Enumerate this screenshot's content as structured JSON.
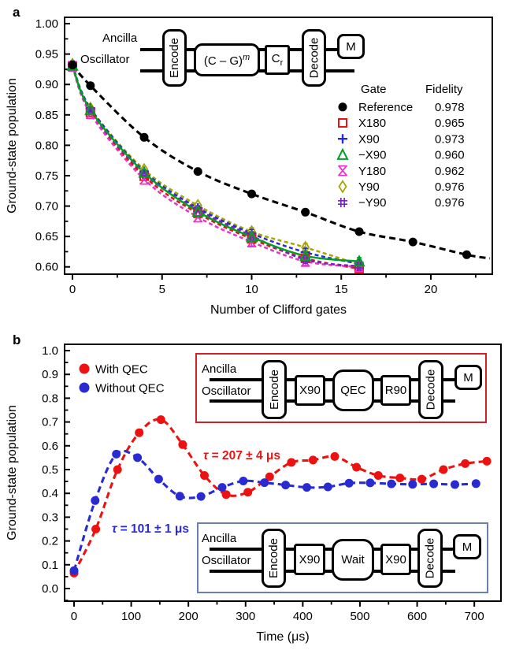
{
  "panel_a": {
    "label": "a",
    "circuit": {
      "ancilla": "Ancilla",
      "oscillator": "Oscillator",
      "encode": "Encode",
      "cg_base": "(C – G)",
      "cg_exp": "m",
      "cr_base": "C",
      "cr_sub": "r",
      "decode": "Decode",
      "m": "M"
    }
  },
  "panel_b": {
    "label": "b",
    "circuit_qec": {
      "ancilla": "Ancilla",
      "oscillator": "Oscillator",
      "encode": "Encode",
      "g1": "X90",
      "g2": "QEC",
      "g3": "R90",
      "decode": "Decode",
      "m": "M"
    },
    "circuit_wait": {
      "ancilla": "Ancilla",
      "oscillator": "Oscillator",
      "encode": "Encode",
      "g1": "X90",
      "g2": "Wait",
      "g3": "X90",
      "decode": "Decode",
      "m": "M"
    }
  },
  "chart_data": [
    {
      "id": "a",
      "type": "scatter",
      "xlabel": "Number of Clifford gates",
      "ylabel": "Ground-state population",
      "xlim": [
        -0.44,
        23.43
      ],
      "ylim": [
        0.588,
        1.0104
      ],
      "xticks": [
        0,
        5,
        10,
        15,
        20
      ],
      "xtick_labels": [
        "0",
        "5",
        "10",
        "15",
        "20"
      ],
      "yticks": [
        0.6,
        0.65,
        0.7,
        0.75,
        0.8,
        0.85,
        0.9,
        0.95,
        1.0
      ],
      "ytick_labels": [
        "0.60",
        "0.65",
        "0.70",
        "0.75",
        "0.80",
        "0.85",
        "0.90",
        "0.95",
        "1.00"
      ],
      "grid": false,
      "legend_titles": {
        "gate": "Gate",
        "fidelity": "Fidelity"
      },
      "legend_position": "upper right",
      "series": [
        {
          "name": "Y90",
          "fidelity": "0.976",
          "color": "#a8a400",
          "marker": "diamond",
          "line": "dashed",
          "x": [
            0,
            1,
            4,
            7,
            10,
            13,
            16
          ],
          "y": [
            0.933,
            0.861,
            0.76,
            0.701,
            0.658,
            0.632,
            0.604
          ]
        },
        {
          "name": "X90",
          "fidelity": "0.973",
          "color": "#2a2ad2",
          "marker": "plus",
          "line": "dashed",
          "x": [
            0,
            1,
            4,
            7,
            10,
            13,
            16
          ],
          "y": [
            0.932,
            0.861,
            0.757,
            0.697,
            0.655,
            0.624,
            0.605
          ]
        },
        {
          "name": "X180",
          "fidelity": "0.965",
          "color": "#ee1111",
          "marker": "square",
          "line": "dashed",
          "x": [
            0,
            1,
            4,
            7,
            10,
            13,
            16
          ],
          "y": [
            0.93,
            0.854,
            0.749,
            0.688,
            0.646,
            0.614,
            0.597
          ]
        },
        {
          "name": "Y180",
          "fidelity": "0.962",
          "color": "#e832c8",
          "marker": "hourglass",
          "line": "dashed",
          "x": [
            0,
            1,
            4,
            7,
            10,
            13,
            16
          ],
          "y": [
            0.93,
            0.852,
            0.744,
            0.682,
            0.641,
            0.609,
            0.6
          ]
        },
        {
          "name": "−Y90",
          "fidelity": "0.976",
          "color": "#7a22bb",
          "marker": "hash",
          "line": "dashed",
          "x": [
            0,
            1,
            4,
            7,
            10,
            13,
            16
          ],
          "y": [
            0.932,
            0.857,
            0.753,
            0.694,
            0.651,
            0.612,
            0.601
          ]
        },
        {
          "name": "−X90",
          "fidelity": "0.960",
          "color": "#00a023",
          "marker": "triangle",
          "line": "solid",
          "x": [
            0,
            1,
            4,
            7,
            10,
            13,
            16
          ],
          "y": [
            0.931,
            0.858,
            0.755,
            0.691,
            0.649,
            0.618,
            0.609
          ]
        },
        {
          "name": "Reference",
          "fidelity": "0.978",
          "color": "#000000",
          "marker": "circle-filled",
          "line": "dashed",
          "x": [
            0,
            1,
            4,
            7,
            10,
            13,
            16,
            19,
            22
          ],
          "y": [
            0.932,
            0.898,
            0.813,
            0.757,
            0.72,
            0.69,
            0.658,
            0.641,
            0.62
          ],
          "fit_extend": [
            23.3,
            0.614
          ]
        }
      ],
      "legend_order": [
        6,
        2,
        1,
        5,
        3,
        0,
        4
      ]
    },
    {
      "id": "b",
      "type": "scatter",
      "xlabel": "Time (μs)",
      "ylabel": "Ground-state population",
      "xlim": [
        -16.5,
        746.6
      ],
      "ylim": [
        -0.053,
        1.0265
      ],
      "xticks": [
        0,
        100,
        200,
        300,
        400,
        500,
        600,
        700
      ],
      "xtick_labels": [
        "0",
        "100",
        "200",
        "300",
        "400",
        "500",
        "600",
        "700"
      ],
      "yticks": [
        0.0,
        0.1,
        0.2,
        0.3,
        0.4,
        0.5,
        0.6,
        0.7,
        0.8,
        0.9,
        1.0
      ],
      "ytick_labels": [
        "0.0",
        "0.1",
        "0.2",
        "0.3",
        "0.4",
        "0.5",
        "0.6",
        "0.7",
        "0.8",
        "0.9",
        "1.0"
      ],
      "grid": false,
      "legend_position": "upper left",
      "series": [
        {
          "name": "With QEC",
          "color": "#ee1111",
          "marker": "circle-filled",
          "line": "dashed",
          "x": [
            0,
            38,
            76,
            114,
            152,
            190,
            228,
            266,
            304,
            342,
            380,
            418,
            456,
            494,
            532,
            570,
            608,
            646,
            684,
            722
          ],
          "y": [
            0.065,
            0.25,
            0.5,
            0.655,
            0.71,
            0.605,
            0.475,
            0.395,
            0.405,
            0.47,
            0.53,
            0.54,
            0.555,
            0.51,
            0.475,
            0.465,
            0.46,
            0.5,
            0.525,
            0.535
          ],
          "tau": "207 ± 4 μs"
        },
        {
          "name": "Without QEC",
          "color": "#2a2ad2",
          "marker": "circle-filled",
          "line": "dashed",
          "x": [
            0,
            37,
            74,
            111,
            148,
            185,
            222,
            259,
            296,
            333,
            370,
            407,
            444,
            481,
            518,
            555,
            592,
            629,
            666,
            703
          ],
          "y": [
            0.075,
            0.37,
            0.565,
            0.55,
            0.46,
            0.388,
            0.387,
            0.425,
            0.452,
            0.445,
            0.435,
            0.425,
            0.427,
            0.443,
            0.444,
            0.44,
            0.438,
            0.44,
            0.437,
            0.441
          ],
          "tau": "101 ± 1 μs"
        }
      ],
      "annotations": [
        {
          "tau_symbol": "τ",
          "text": " = 207 ± 4 μs",
          "color": "#ee1111",
          "x": 258,
          "y": 163
        },
        {
          "tau_symbol": "τ",
          "text": " = 101 ± 1 μs",
          "color": "#2a2ad2",
          "x": 142,
          "y": 256
        }
      ]
    }
  ]
}
